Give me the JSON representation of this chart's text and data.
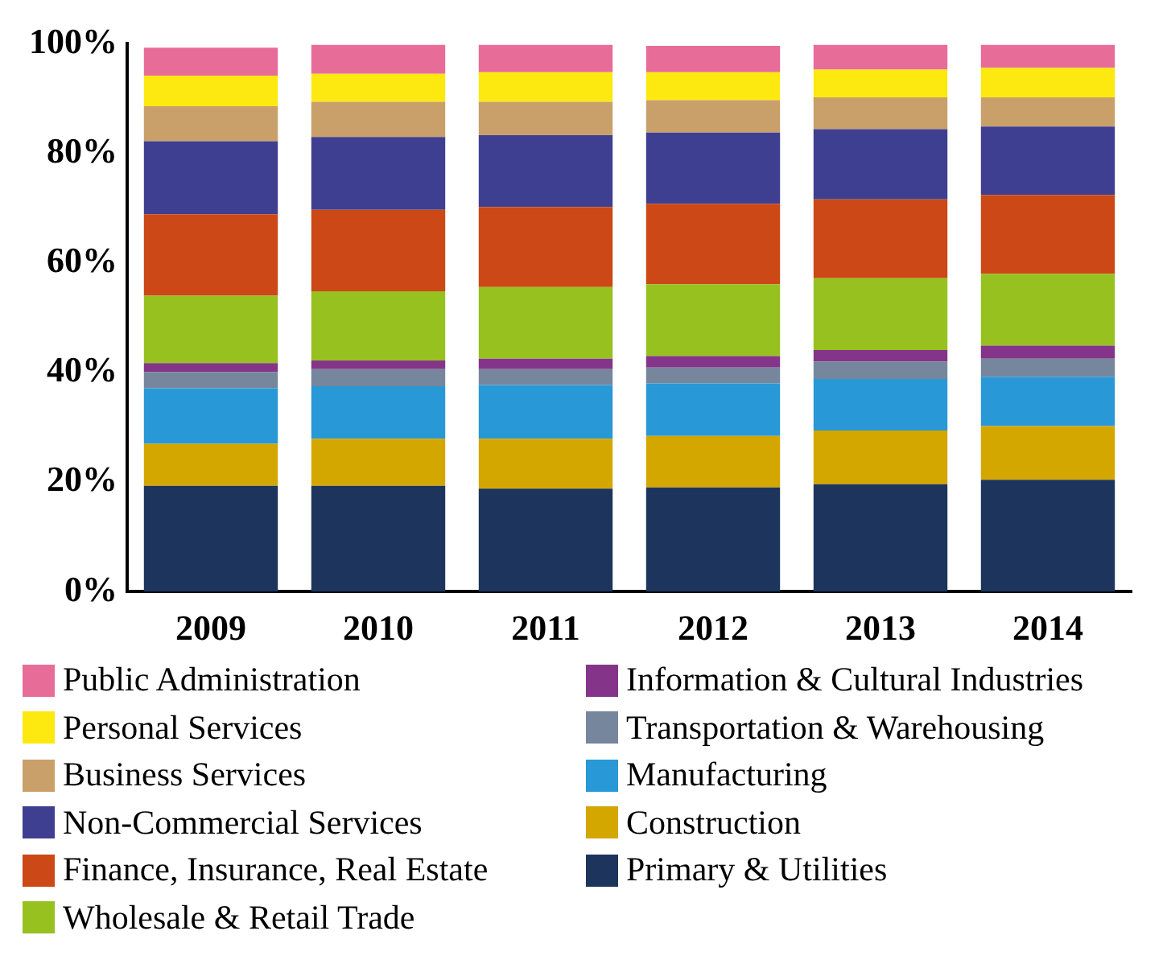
{
  "chart_data": {
    "type": "bar",
    "stacked": true,
    "categories": [
      "2009",
      "2010",
      "2011",
      "2012",
      "2013",
      "2014"
    ],
    "ylim": [
      0,
      100
    ],
    "yticks": [
      {
        "value": 0,
        "label": "0%"
      },
      {
        "value": 20,
        "label": "20%"
      },
      {
        "value": 40,
        "label": "40%"
      },
      {
        "value": 60,
        "label": "60%"
      },
      {
        "value": 80,
        "label": "80%"
      },
      {
        "value": 100,
        "label": "100%"
      }
    ],
    "grid": false,
    "legend": "bottom",
    "series": [
      {
        "name": "Primary & Utilities",
        "color": "#1d355c",
        "values": [
          19.3,
          19.3,
          18.8,
          19.0,
          19.6,
          20.4
        ]
      },
      {
        "name": "Construction",
        "color": "#d4a600",
        "values": [
          7.7,
          8.6,
          9.1,
          9.4,
          9.8,
          9.8
        ]
      },
      {
        "name": "Manufacturing",
        "color": "#2898d6",
        "values": [
          10.1,
          9.6,
          9.8,
          9.6,
          9.4,
          9.0
        ]
      },
      {
        "name": "Transportation & Warehousing",
        "color": "#76869c",
        "values": [
          3.0,
          3.1,
          2.9,
          2.9,
          3.2,
          3.3
        ]
      },
      {
        "name": "Information & Cultural Industries",
        "color": "#84358a",
        "values": [
          1.6,
          1.6,
          1.9,
          2.1,
          2.1,
          2.4
        ]
      },
      {
        "name": "Wholesale & Retail Trade",
        "color": "#96c11f",
        "values": [
          12.3,
          12.6,
          13.1,
          13.1,
          13.1,
          13.1
        ]
      },
      {
        "name": "Finance, Insurance, Real Estate",
        "color": "#cc4816",
        "values": [
          14.9,
          14.9,
          14.6,
          14.7,
          14.4,
          14.4
        ]
      },
      {
        "name": "Non-Commercial Services",
        "color": "#3f3f92",
        "values": [
          13.3,
          13.3,
          13.1,
          13.0,
          12.8,
          12.5
        ]
      },
      {
        "name": "Business Services",
        "color": "#c9a06a",
        "values": [
          6.4,
          6.4,
          6.1,
          5.9,
          5.8,
          5.3
        ]
      },
      {
        "name": "Personal Services",
        "color": "#fde910",
        "values": [
          5.6,
          5.1,
          5.4,
          5.1,
          5.1,
          5.4
        ]
      },
      {
        "name": "Public Administration",
        "color": "#e86c98",
        "values": [
          5.1,
          5.3,
          5.0,
          4.8,
          4.5,
          4.2
        ]
      }
    ]
  }
}
